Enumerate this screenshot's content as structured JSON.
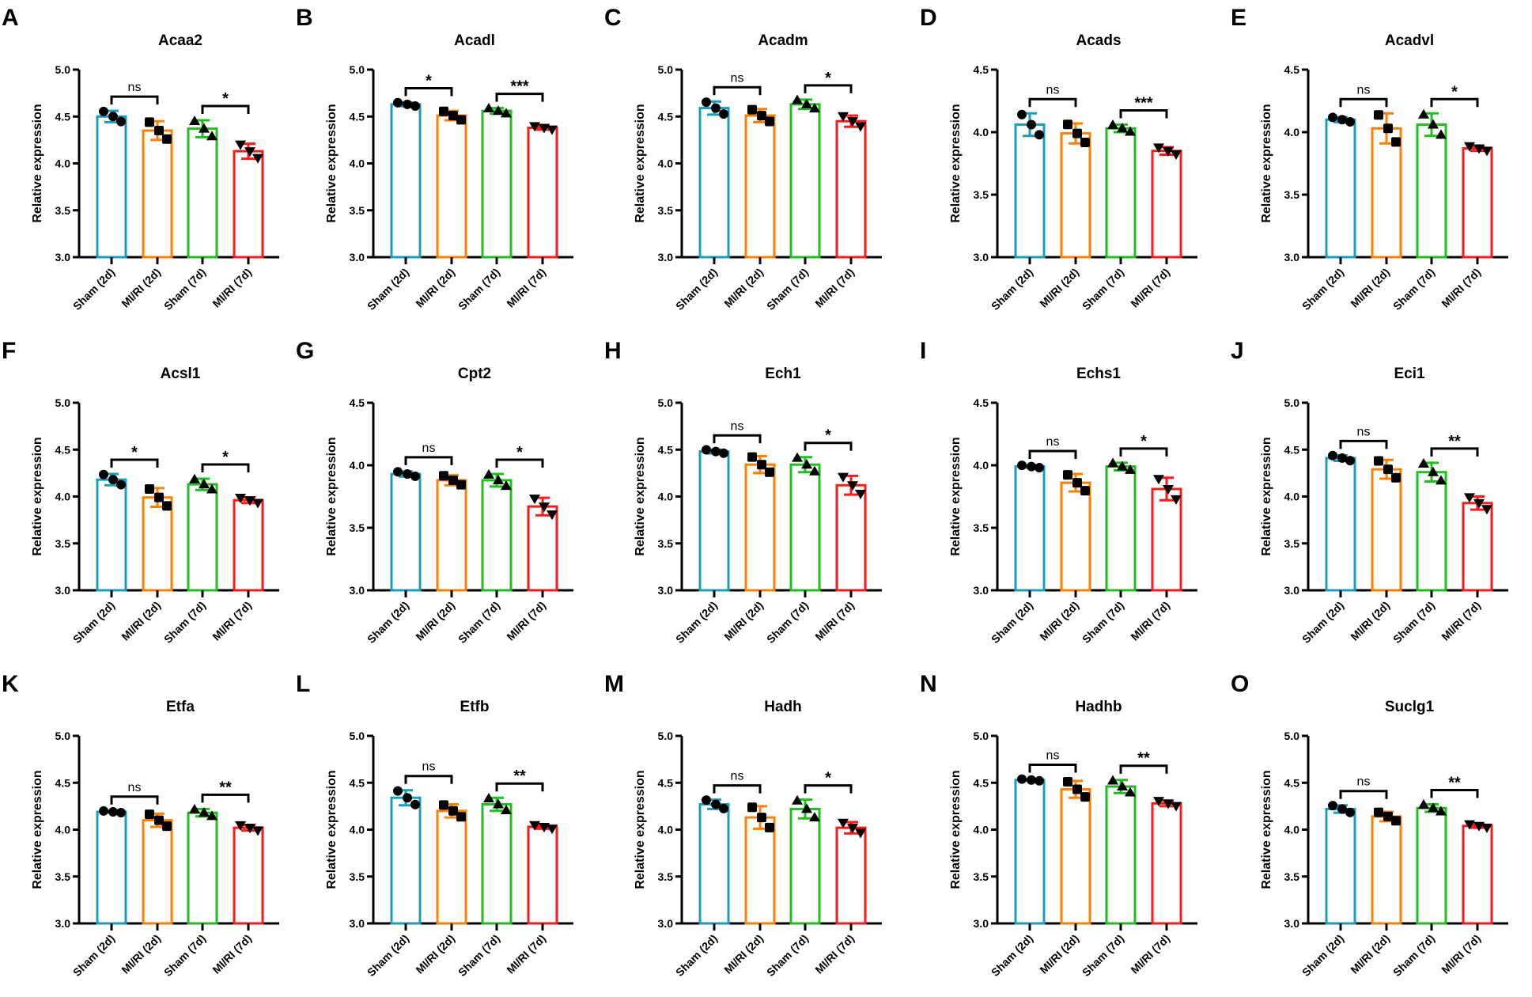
{
  "chart_data": {
    "type": "bar",
    "ylabel": "Relative expression",
    "categories": [
      "Sham (2d)",
      "MI/RI (2d)",
      "Sham (7d)",
      "MI/RI (7d)"
    ],
    "colors": [
      "#1a9ec0",
      "#ff8000",
      "#1fbf1f",
      "#ff1a1a"
    ],
    "panels": [
      {
        "letter": "A",
        "title": "Acaa2",
        "ylim": [
          3.0,
          5.0
        ],
        "yticks": [
          "3.0",
          "3.5",
          "4.0",
          "4.5",
          "5.0"
        ],
        "means": [
          4.5,
          4.35,
          4.37,
          4.13
        ],
        "sd": [
          0.06,
          0.1,
          0.09,
          0.08
        ],
        "sig": [
          "ns",
          "*"
        ]
      },
      {
        "letter": "B",
        "title": "Acadl",
        "ylim": [
          3.0,
          5.0
        ],
        "yticks": [
          "3.0",
          "3.5",
          "4.0",
          "4.5",
          "5.0"
        ],
        "means": [
          4.63,
          4.51,
          4.56,
          4.38
        ],
        "sd": [
          0.02,
          0.05,
          0.03,
          0.02
        ],
        "sig": [
          "*",
          "***"
        ]
      },
      {
        "letter": "C",
        "title": "Acadm",
        "ylim": [
          3.0,
          5.0
        ],
        "yticks": [
          "3.0",
          "3.5",
          "4.0",
          "4.5",
          "5.0"
        ],
        "means": [
          4.59,
          4.51,
          4.63,
          4.45
        ],
        "sd": [
          0.07,
          0.07,
          0.05,
          0.06
        ],
        "sig": [
          "ns",
          "*"
        ]
      },
      {
        "letter": "D",
        "title": "Acads",
        "ylim": [
          3.0,
          4.5
        ],
        "yticks": [
          "3.0",
          "3.5",
          "4.0",
          "4.5"
        ],
        "means": [
          4.06,
          3.99,
          4.03,
          3.85
        ],
        "sd": [
          0.09,
          0.08,
          0.03,
          0.03
        ],
        "sig": [
          "ns",
          "***"
        ]
      },
      {
        "letter": "E",
        "title": "Acadvl",
        "ylim": [
          3.0,
          4.5
        ],
        "yticks": [
          "3.0",
          "3.5",
          "4.0",
          "4.5"
        ],
        "means": [
          4.1,
          4.03,
          4.06,
          3.87
        ],
        "sd": [
          0.02,
          0.12,
          0.09,
          0.02
        ],
        "sig": [
          "ns",
          "*"
        ]
      },
      {
        "letter": "F",
        "title": "Acsl1",
        "ylim": [
          3.0,
          5.0
        ],
        "yticks": [
          "3.0",
          "3.5",
          "4.0",
          "4.5",
          "5.0"
        ],
        "means": [
          4.18,
          3.99,
          4.13,
          3.96
        ],
        "sd": [
          0.06,
          0.1,
          0.06,
          0.03
        ],
        "sig": [
          "*",
          "*"
        ]
      },
      {
        "letter": "G",
        "title": "Cpt2",
        "ylim": [
          3.0,
          4.5
        ],
        "yticks": [
          "3.0",
          "3.5",
          "4.0",
          "4.5"
        ],
        "means": [
          3.93,
          3.88,
          3.88,
          3.67
        ],
        "sd": [
          0.02,
          0.04,
          0.05,
          0.07
        ],
        "sig": [
          "ns",
          "*"
        ]
      },
      {
        "letter": "H",
        "title": "Ech1",
        "ylim": [
          3.0,
          5.0
        ],
        "yticks": [
          "3.0",
          "3.5",
          "4.0",
          "4.5",
          "5.0"
        ],
        "means": [
          4.48,
          4.34,
          4.34,
          4.12
        ],
        "sd": [
          0.02,
          0.09,
          0.08,
          0.1
        ],
        "sig": [
          "ns",
          "*"
        ]
      },
      {
        "letter": "I",
        "title": "Echs1",
        "ylim": [
          3.0,
          4.5
        ],
        "yticks": [
          "3.0",
          "3.5",
          "4.0",
          "4.5"
        ],
        "means": [
          3.99,
          3.86,
          3.99,
          3.81
        ],
        "sd": [
          0.01,
          0.07,
          0.03,
          0.09
        ],
        "sig": [
          "ns",
          "*"
        ]
      },
      {
        "letter": "J",
        "title": "Eci1",
        "ylim": [
          3.0,
          5.0
        ],
        "yticks": [
          "3.0",
          "3.5",
          "4.0",
          "4.5",
          "5.0"
        ],
        "means": [
          4.41,
          4.29,
          4.26,
          3.93
        ],
        "sd": [
          0.03,
          0.1,
          0.1,
          0.07
        ],
        "sig": [
          "ns",
          "**"
        ]
      },
      {
        "letter": "K",
        "title": "Etfa",
        "ylim": [
          3.0,
          5.0
        ],
        "yticks": [
          "3.0",
          "3.5",
          "4.0",
          "4.5",
          "5.0"
        ],
        "means": [
          4.19,
          4.1,
          4.18,
          4.02
        ],
        "sd": [
          0.01,
          0.07,
          0.04,
          0.03
        ],
        "sig": [
          "ns",
          "**"
        ]
      },
      {
        "letter": "L",
        "title": "Etfb",
        "ylim": [
          3.0,
          5.0
        ],
        "yticks": [
          "3.0",
          "3.5",
          "4.0",
          "4.5",
          "5.0"
        ],
        "means": [
          4.34,
          4.2,
          4.27,
          4.03
        ],
        "sd": [
          0.08,
          0.07,
          0.07,
          0.02
        ],
        "sig": [
          "ns",
          "**"
        ]
      },
      {
        "letter": "M",
        "title": "Hadh",
        "ylim": [
          3.0,
          5.0
        ],
        "yticks": [
          "3.0",
          "3.5",
          "4.0",
          "4.5",
          "5.0"
        ],
        "means": [
          4.27,
          4.13,
          4.22,
          4.02
        ],
        "sd": [
          0.05,
          0.12,
          0.1,
          0.06
        ],
        "sig": [
          "ns",
          "*"
        ]
      },
      {
        "letter": "N",
        "title": "Hadhb",
        "ylim": [
          3.0,
          5.0
        ],
        "yticks": [
          "3.0",
          "3.5",
          "4.0",
          "4.5",
          "5.0"
        ],
        "means": [
          4.53,
          4.43,
          4.46,
          4.28
        ],
        "sd": [
          0.01,
          0.09,
          0.07,
          0.03
        ],
        "sig": [
          "ns",
          "**"
        ]
      },
      {
        "letter": "O",
        "title": "Suclg1",
        "ylim": [
          3.0,
          5.0
        ],
        "yticks": [
          "3.0",
          "3.5",
          "4.0",
          "4.5",
          "5.0"
        ],
        "means": [
          4.22,
          4.14,
          4.23,
          4.04
        ],
        "sd": [
          0.04,
          0.05,
          0.04,
          0.02
        ],
        "sig": [
          "ns",
          "**"
        ]
      }
    ]
  }
}
